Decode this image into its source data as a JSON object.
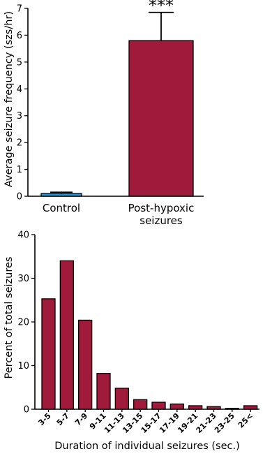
{
  "chart_data": [
    {
      "type": "bar",
      "categories": [
        "Control",
        "Post-hypoxic seizures"
      ],
      "category_lines": [
        [
          "Control"
        ],
        [
          "Post-hypoxic",
          "seizures"
        ]
      ],
      "values": [
        0.1,
        5.8
      ],
      "error": [
        0.05,
        1.05
      ],
      "colors": [
        "#2a8fd0",
        "#a01a3c"
      ],
      "ylabel": "Average seizure frequency (szs/hr)",
      "ylim": [
        0,
        7
      ],
      "yticks": [
        0,
        1,
        2,
        3,
        4,
        5,
        6,
        7
      ],
      "annotation": "***"
    },
    {
      "type": "bar",
      "categories": [
        "3-5",
        "5-7",
        "7-9",
        "9-11",
        "11-13",
        "13-15",
        "15-17",
        "17-19",
        "19-21",
        "21-23",
        "23-25",
        "25<"
      ],
      "values": [
        25.3,
        34.0,
        20.4,
        8.2,
        4.8,
        2.2,
        1.6,
        1.2,
        0.8,
        0.6,
        0.2,
        0.8
      ],
      "color": "#a01a3c",
      "xlabel": "Duration of individual seizures (sec.)",
      "ylabel": "Percent of total seizures",
      "ylim": [
        0,
        40
      ],
      "yticks": [
        0,
        10,
        20,
        30,
        40
      ]
    }
  ]
}
